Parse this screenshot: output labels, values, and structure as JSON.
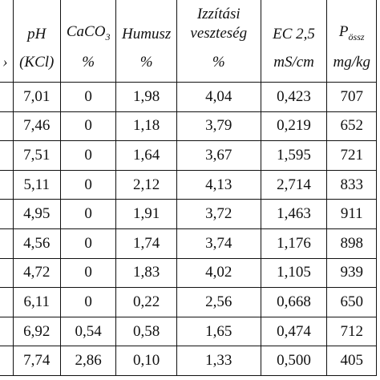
{
  "header": {
    "ph": "pH",
    "caco3_main": "CaCO",
    "caco3_sub": "3",
    "humusz": "Humusz",
    "izzitasi_line1": "Izzítási",
    "izzitasi_line2": "veszteség",
    "ec": "EC 2,5",
    "p_main": "P",
    "p_sub": "össz",
    "left_mark": "›"
  },
  "units": {
    "ph": "(KCl)",
    "caco3": "%",
    "humusz": "%",
    "izzitasi": "%",
    "ec": "mS/cm",
    "p": "mg/kg"
  },
  "rows": [
    [
      "7,01",
      "0",
      "1,98",
      "4,04",
      "0,423",
      "707"
    ],
    [
      "7,46",
      "0",
      "1,18",
      "3,79",
      "0,219",
      "652"
    ],
    [
      "7,51",
      "0",
      "1,64",
      "3,67",
      "1,595",
      "721"
    ],
    [
      "5,11",
      "0",
      "2,12",
      "4,13",
      "2,714",
      "833"
    ],
    [
      "4,95",
      "0",
      "1,91",
      "3,72",
      "1,463",
      "911"
    ],
    [
      "4,56",
      "0",
      "1,74",
      "3,74",
      "1,176",
      "898"
    ],
    [
      "4,72",
      "0",
      "1,83",
      "4,02",
      "1,105",
      "939"
    ],
    [
      "6,11",
      "0",
      "0,22",
      "2,56",
      "0,668",
      "650"
    ],
    [
      "6,92",
      "0,54",
      "0,58",
      "1,65",
      "0,474",
      "712"
    ],
    [
      "7,74",
      "2,86",
      "0,10",
      "1,33",
      "0,500",
      "405"
    ]
  ]
}
